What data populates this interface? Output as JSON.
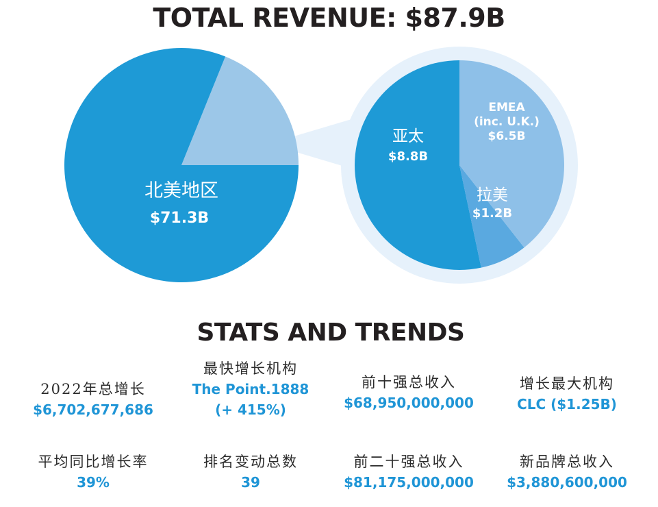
{
  "title": "TOTAL REVENUE: $87.9B",
  "section_title": "STATS AND TRENDS",
  "colors": {
    "north_america": "#1e9ad6",
    "north_america_rest": "#9cc7e8",
    "apac": "#1e9ad6",
    "emea": "#8ec0e8",
    "latam": "#5aa9e0",
    "ring": "#e6f1fb",
    "stat_value": "#1f95d6"
  },
  "chart_data": [
    {
      "type": "pie",
      "title": "TOTAL REVENUE: $87.9B",
      "slices": [
        {
          "label": "北美地区",
          "value": 71.3,
          "value_label": "$71.3B"
        },
        {
          "label": "",
          "value": 16.6
        }
      ]
    },
    {
      "type": "pie",
      "slices": [
        {
          "label": "亚太",
          "value": 8.8,
          "value_label": "$8.8B"
        },
        {
          "label": "EMEA (inc. U.K.)",
          "value": 6.5,
          "value_label": "$6.5B"
        },
        {
          "label": "拉美",
          "value": 1.2,
          "value_label": "$1.2B"
        }
      ]
    }
  ],
  "labels": {
    "na_name": "北美地区",
    "na_value": "$71.3B",
    "apac_name": "亚太",
    "apac_value": "$8.8B",
    "emea_line1": "EMEA",
    "emea_line2": "(inc. U.K.)",
    "emea_value": "$6.5B",
    "latam_name": "拉美",
    "latam_value": "$1.2B"
  },
  "stats": [
    {
      "label": "2022年总增长",
      "value": "$6,702,677,686"
    },
    {
      "label": "最快增长机构",
      "value": "The Point.1888",
      "value2": "(+ 415%)"
    },
    {
      "label": "前十强总收入",
      "value": "$68,950,000,000"
    },
    {
      "label": "增长最大机构",
      "value": "CLC ($1.25B)"
    },
    {
      "label": "平均同比增长率",
      "value": "39%"
    },
    {
      "label": "排名变动总数",
      "value": "39"
    },
    {
      "label": "前二十强总收入",
      "value": "$81,175,000,000"
    },
    {
      "label": "新品牌总收入",
      "value": "$3,880,600,000"
    }
  ]
}
